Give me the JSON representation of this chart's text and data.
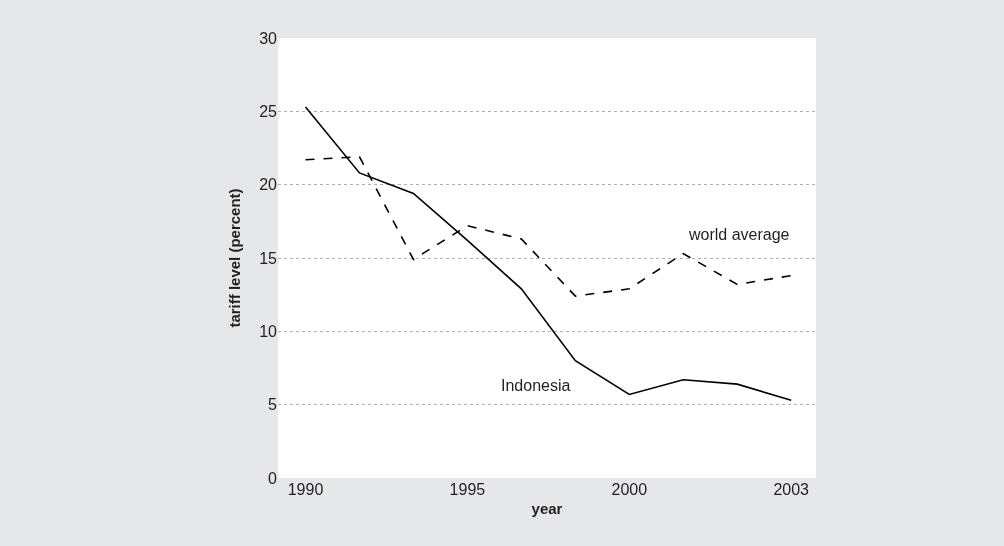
{
  "chart_data": {
    "type": "line",
    "xlabel": "year",
    "ylabel": "tariff level (percent)",
    "categories": [
      "1990",
      null,
      null,
      "1995",
      null,
      null,
      "2000",
      null,
      null,
      "2003"
    ],
    "series": [
      {
        "name": "Indonesia",
        "color": "#000000",
        "line_style": "solid",
        "values": [
          25.3,
          20.8,
          19.4,
          16.2,
          12.9,
          8.0,
          5.7,
          6.7,
          6.4,
          5.3
        ]
      },
      {
        "name": "world average",
        "color": "#000000",
        "line_style": "dashed",
        "values": [
          21.7,
          21.9,
          14.9,
          17.2,
          16.3,
          12.4,
          12.9,
          15.3,
          13.2,
          13.8
        ]
      }
    ],
    "ylim": [
      0,
      30
    ],
    "yticks": [
      0,
      5,
      10,
      15,
      20,
      25,
      30
    ],
    "grid": "y",
    "legend": false,
    "marker": "none"
  }
}
